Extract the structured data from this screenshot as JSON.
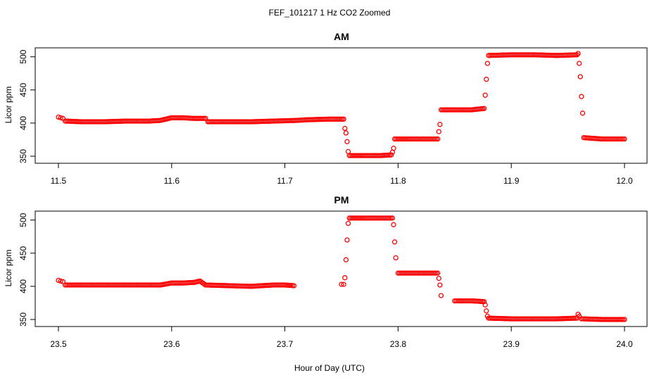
{
  "figure": {
    "title": "FEF_101217  1 Hz CO2 Zoomed",
    "xlabel": "Hour of Day (UTC)",
    "point_color": "#ff0000"
  },
  "chart_data": [
    {
      "type": "scatter",
      "title": "AM",
      "ylabel": "Licor ppm",
      "xlabel": "",
      "xlim": [
        11.5,
        12.0
      ],
      "ylim": [
        350,
        505
      ],
      "xticks": [
        11.5,
        11.6,
        11.7,
        11.8,
        11.9,
        12.0
      ],
      "xtick_labels": [
        "11.5",
        "11.6",
        "11.7",
        "11.8",
        "11.9",
        "12.0"
      ],
      "yticks": [
        350,
        400,
        450,
        500
      ],
      "ytick_labels": [
        "350",
        "400",
        "450",
        "500"
      ],
      "grid": false,
      "series": [
        {
          "color": "#ff0000",
          "marker": "open-circle",
          "x": [
            11.5,
            11.502,
            11.504,
            11.506,
            11.52,
            11.54,
            11.56,
            11.58,
            11.59,
            11.6,
            11.61,
            11.62,
            11.63,
            11.632,
            11.65,
            11.67,
            11.69,
            11.71,
            11.72,
            11.74,
            11.752,
            11.753,
            11.754,
            11.755,
            11.756,
            11.757,
            11.77,
            11.785,
            11.794,
            11.795,
            11.796,
            11.797,
            11.81,
            11.825,
            11.835,
            11.836,
            11.837,
            11.838,
            11.85,
            11.865,
            11.876,
            11.877,
            11.878,
            11.879,
            11.88,
            11.9,
            11.92,
            11.94,
            11.958,
            11.959,
            11.96,
            11.961,
            11.962,
            11.963,
            11.964,
            11.98,
            12.0
          ],
          "y": [
            409,
            408,
            407,
            403,
            402,
            402,
            403,
            403,
            404,
            408,
            408,
            407,
            407,
            402,
            402,
            402,
            403,
            404,
            405,
            406,
            406,
            392,
            385,
            372,
            357,
            351,
            351,
            351,
            352,
            356,
            362,
            376,
            376,
            376,
            376,
            387,
            398,
            420,
            420,
            420,
            422,
            442,
            466,
            490,
            502,
            503,
            503,
            502,
            503,
            505,
            490,
            470,
            440,
            415,
            378,
            376,
            376
          ]
        }
      ]
    },
    {
      "type": "scatter",
      "title": "PM",
      "ylabel": "Licor ppm",
      "xlabel": "Hour of Day (UTC)",
      "xlim": [
        23.5,
        24.0
      ],
      "ylim": [
        350,
        505
      ],
      "xticks": [
        23.5,
        23.6,
        23.7,
        23.8,
        23.9,
        24.0
      ],
      "xtick_labels": [
        "23.5",
        "23.6",
        "23.7",
        "23.8",
        "23.9",
        "24.0"
      ],
      "yticks": [
        350,
        400,
        450,
        500
      ],
      "ytick_labels": [
        "350",
        "400",
        "450",
        "500"
      ],
      "grid": false,
      "series": [
        {
          "color": "#ff0000",
          "marker": "open-circle",
          "x": [
            23.5,
            23.502,
            23.504,
            23.506,
            23.52,
            23.54,
            23.56,
            23.58,
            23.59,
            23.6,
            23.61,
            23.62,
            23.625,
            23.63,
            23.65,
            23.67,
            23.68,
            23.69,
            23.7,
            23.708,
            23.75,
            23.752,
            23.753,
            23.754,
            23.755,
            23.756,
            23.757,
            23.77,
            23.785,
            23.795,
            23.796,
            23.797,
            23.798,
            23.8,
            23.82,
            23.835,
            23.836,
            23.837,
            23.838,
            23.85,
            23.865,
            23.876,
            23.877,
            23.878,
            23.879,
            23.88,
            23.9,
            23.92,
            23.94,
            23.958,
            23.959,
            23.96,
            23.962,
            23.98,
            24.0
          ],
          "y": [
            409,
            408,
            407,
            402,
            402,
            402,
            402,
            402,
            402,
            405,
            405,
            406,
            408,
            402,
            401,
            400,
            401,
            402,
            402,
            401,
            403,
            403,
            413,
            440,
            470,
            495,
            503,
            503,
            503,
            503,
            493,
            467,
            443,
            420,
            420,
            420,
            412,
            402,
            386,
            378,
            378,
            377,
            372,
            363,
            355,
            352,
            351,
            351,
            351,
            352,
            358,
            355,
            351,
            350,
            350
          ]
        }
      ]
    }
  ]
}
